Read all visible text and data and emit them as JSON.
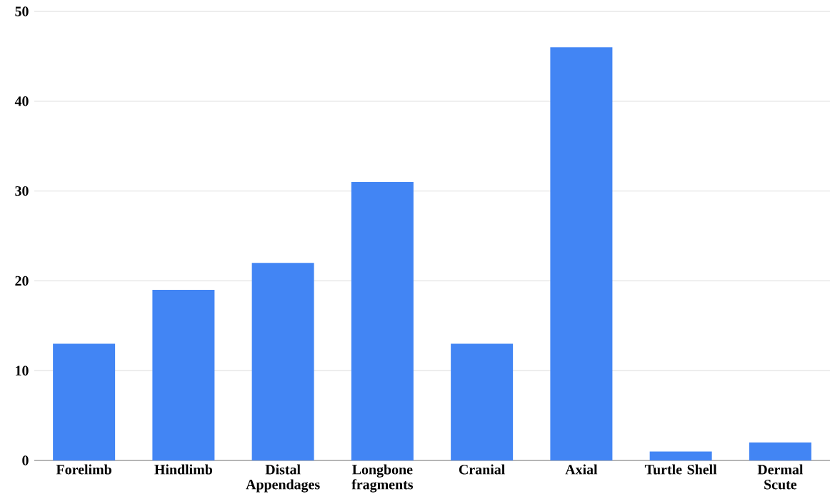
{
  "chart_data": {
    "type": "bar",
    "categories": [
      "Forelimb",
      "Hindlimb",
      "Distal Appendages",
      "Longbone fragments",
      "Cranial",
      "Axial",
      "Turtle Shell",
      "Dermal Scute"
    ],
    "values": [
      13,
      19,
      22,
      31,
      13,
      46,
      1,
      2
    ],
    "color": "#4285f4",
    "ylim": [
      0,
      50
    ],
    "yticks": [
      0,
      10,
      20,
      30,
      40,
      50
    ],
    "grid": "y"
  }
}
